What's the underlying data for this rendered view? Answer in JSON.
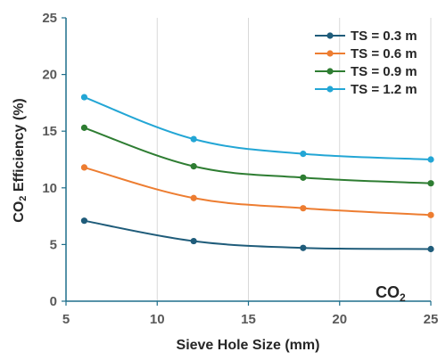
{
  "chart_data": {
    "type": "line",
    "title": "",
    "xlabel": "Sieve Hole Size (mm)",
    "ylabel_parts": {
      "main": "CO",
      "sub": "2",
      "rest": " Efficiency (%)"
    },
    "annotation": {
      "main": "CO",
      "sub": "2"
    },
    "xlim": [
      5,
      25
    ],
    "ylim": [
      0,
      25
    ],
    "xticks": [
      5,
      10,
      15,
      20,
      25
    ],
    "yticks": [
      0,
      5,
      10,
      15,
      20,
      25
    ],
    "grid": "vertical",
    "legend_position": "top-right",
    "x": [
      6,
      12,
      18,
      25
    ],
    "series": [
      {
        "name": "TS = 0.3 m",
        "color": "#1f5c7a",
        "values": [
          7.1,
          5.3,
          4.7,
          4.6
        ]
      },
      {
        "name": "TS = 0.6 m",
        "color": "#ed7d31",
        "values": [
          11.8,
          9.1,
          8.2,
          7.6
        ]
      },
      {
        "name": "TS = 0.9 m",
        "color": "#2e7d32",
        "values": [
          15.3,
          11.9,
          10.9,
          10.4
        ]
      },
      {
        "name": "TS = 1.2 m",
        "color": "#23a6d5",
        "values": [
          18.0,
          14.3,
          13.0,
          12.5
        ]
      }
    ]
  }
}
